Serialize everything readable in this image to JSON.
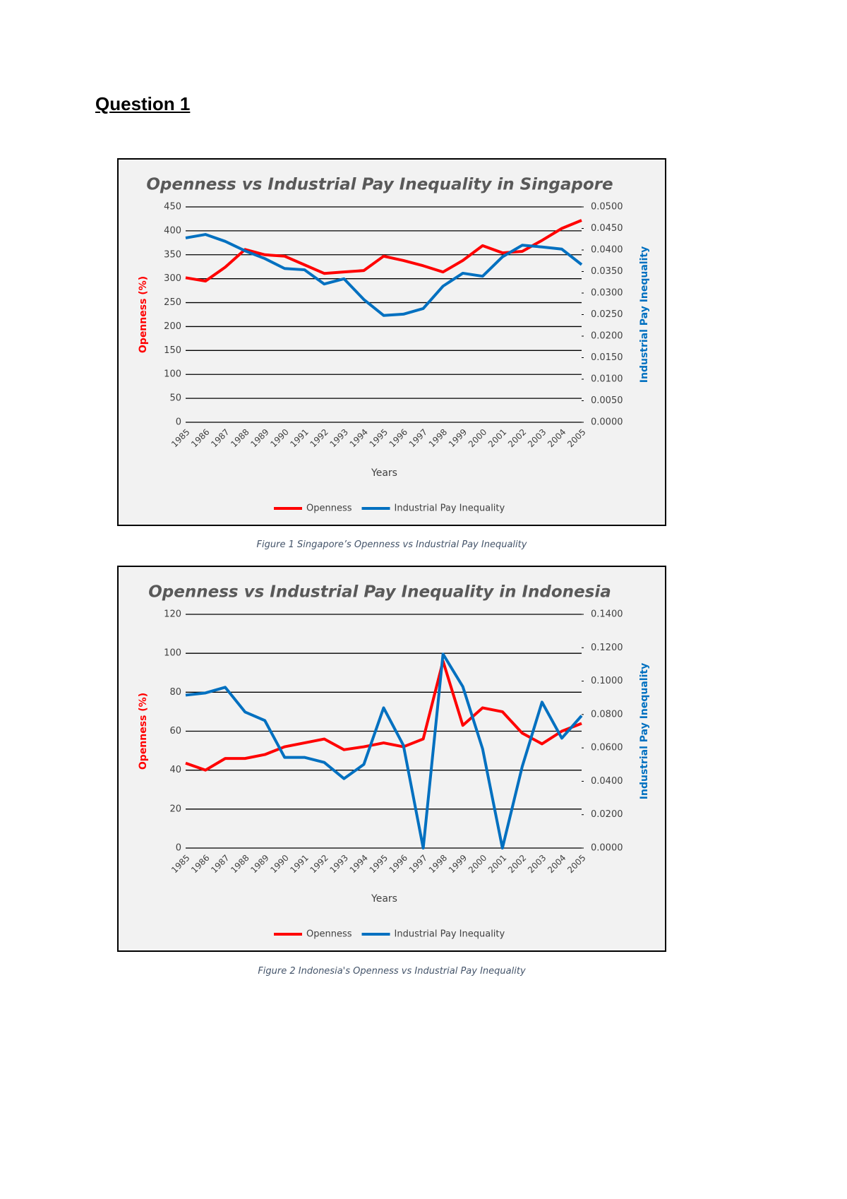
{
  "heading": "Question 1",
  "chart_data": [
    {
      "type": "line",
      "title": "Openness vs Industrial Pay Inequality in Singapore",
      "caption": "Figure 1 Singapore’s Openness vs Industrial Pay Inequality",
      "xlabel": "Years",
      "ylabel": "Openness (%)",
      "y2label": "Industrial Pay Inequality",
      "categories": [
        "1985",
        "1986",
        "1987",
        "1988",
        "1989",
        "1990",
        "1991",
        "1992",
        "1993",
        "1994",
        "1995",
        "1996",
        "1997",
        "1998",
        "1999",
        "2000",
        "2001",
        "2002",
        "2003",
        "2004",
        "2005"
      ],
      "series": [
        {
          "name": "Openness",
          "color": "#ff0000",
          "values": [
            302,
            295,
            324,
            361,
            350,
            347,
            329,
            311,
            314,
            317,
            347,
            338,
            327,
            314,
            338,
            369,
            354,
            357,
            380,
            405,
            422
          ]
        },
        {
          "name": "Industrial Pay Inequality",
          "color": "#0070c0",
          "axis": "y2",
          "values": [
            0.0428,
            0.0436,
            0.042,
            0.0398,
            0.038,
            0.0357,
            0.0354,
            0.0321,
            0.0333,
            0.0285,
            0.0248,
            0.0251,
            0.0264,
            0.0316,
            0.0346,
            0.0339,
            0.0384,
            0.0411,
            0.0407,
            0.0402,
            0.0366
          ]
        }
      ],
      "ylim": [
        0,
        450
      ],
      "yticks": [
        0,
        50,
        100,
        150,
        200,
        250,
        300,
        350,
        400,
        450
      ],
      "y2lim": [
        0,
        0.05
      ],
      "y2ticks": [
        {
          "value": 0,
          "label": "0.0000"
        },
        {
          "value": 0.005,
          "label": "0.0050"
        },
        {
          "value": 0.01,
          "label": "0.0100"
        },
        {
          "value": 0.015,
          "label": "0.0150"
        },
        {
          "value": 0.02,
          "label": "0.0200"
        },
        {
          "value": 0.025,
          "label": "0.0250"
        },
        {
          "value": 0.03,
          "label": "0.0300"
        },
        {
          "value": 0.035,
          "label": "0.0350"
        },
        {
          "value": 0.04,
          "label": "0.0400"
        },
        {
          "value": 0.045,
          "label": "0.0450"
        },
        {
          "value": 0.05,
          "label": "0.0500"
        }
      ],
      "grid": true,
      "legend": "bottom"
    },
    {
      "type": "line",
      "title": "Openness vs Industrial Pay Inequality in Indonesia",
      "caption": "Figure 2 Indonesia's Openness vs Industrial Pay Inequality",
      "xlabel": "Years",
      "ylabel": "Openness (%)",
      "y2label": "Industrial Pay Inequality",
      "categories": [
        "1985",
        "1986",
        "1987",
        "1988",
        "1989",
        "1990",
        "1991",
        "1992",
        "1993",
        "1994",
        "1995",
        "1996",
        "1997",
        "1998",
        "1999",
        "2000",
        "2001",
        "2002",
        "2003",
        "2004",
        "2005"
      ],
      "series": [
        {
          "name": "Openness",
          "color": "#ff0000",
          "values": [
            43.6,
            40,
            46,
            46,
            48,
            52,
            54,
            56,
            50.5,
            52,
            54,
            52,
            56,
            96,
            63,
            72,
            70,
            59,
            53.5,
            60,
            64
          ]
        },
        {
          "name": "Industrial Pay Inequality",
          "color": "#0070c0",
          "axis": "y2",
          "values": [
            0.0916,
            0.0929,
            0.0963,
            0.0815,
            0.0764,
            0.0543,
            0.0543,
            0.0513,
            0.0416,
            0.0501,
            0.084,
            0.0615,
            0,
            0.1162,
            0.0967,
            0.0594,
            0,
            0.0488,
            0.0874,
            0.0658,
            0.0793
          ]
        }
      ],
      "ylim": [
        0,
        120
      ],
      "yticks": [
        0,
        20,
        40,
        60,
        80,
        100,
        120
      ],
      "y2lim": [
        0,
        0.14
      ],
      "y2ticks": [
        {
          "value": 0,
          "label": "0.0000"
        },
        {
          "value": 0.02,
          "label": "0.0200"
        },
        {
          "value": 0.04,
          "label": "0.0400"
        },
        {
          "value": 0.06,
          "label": "0.0600"
        },
        {
          "value": 0.08,
          "label": "0.0800"
        },
        {
          "value": 0.1,
          "label": "0.1000"
        },
        {
          "value": 0.12,
          "label": "0.1200"
        },
        {
          "value": 0.14,
          "label": "0.1400"
        }
      ],
      "grid": true,
      "legend": "bottom"
    }
  ]
}
